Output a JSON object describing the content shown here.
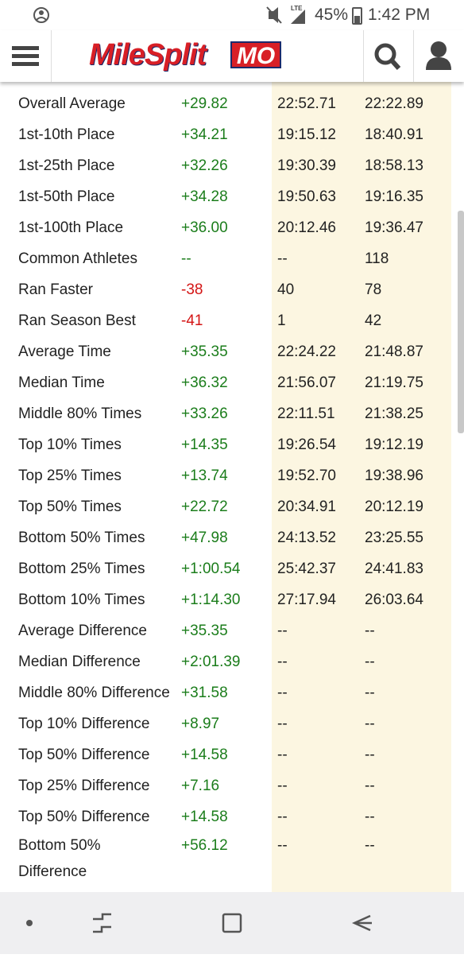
{
  "status_bar": {
    "network": "LTE",
    "battery": "45%",
    "time": "1:42 PM"
  },
  "header": {
    "logo": "MileSplit",
    "region": "MO"
  },
  "table": {
    "rows": [
      [
        "Overall Average",
        "+29.82",
        "22:52.71",
        "22:22.89"
      ],
      [
        "1st-10th Place",
        "+34.21",
        "19:15.12",
        "18:40.91"
      ],
      [
        "1st-25th Place",
        "+32.26",
        "19:30.39",
        "18:58.13"
      ],
      [
        "1st-50th Place",
        "+34.28",
        "19:50.63",
        "19:16.35"
      ],
      [
        "1st-100th Place",
        "+36.00",
        "20:12.46",
        "19:36.47"
      ],
      [
        "Common Athletes",
        "--",
        "--",
        "118"
      ],
      [
        "Ran Faster",
        "-38",
        "40",
        "78"
      ],
      [
        "Ran Season Best",
        "-41",
        "1",
        "42"
      ],
      [
        "Average Time",
        "+35.35",
        "22:24.22",
        "21:48.87"
      ],
      [
        "Median Time",
        "+36.32",
        "21:56.07",
        "21:19.75"
      ],
      [
        "Middle 80% Times",
        "+33.26",
        "22:11.51",
        "21:38.25"
      ],
      [
        "Top 10% Times",
        "+14.35",
        "19:26.54",
        "19:12.19"
      ],
      [
        "Top 25% Times",
        "+13.74",
        "19:52.70",
        "19:38.96"
      ],
      [
        "Top 50% Times",
        "+22.72",
        "20:34.91",
        "20:12.19"
      ],
      [
        "Bottom 50% Times",
        "+47.98",
        "24:13.52",
        "23:25.55"
      ],
      [
        "Bottom 25% Times",
        "+1:00.54",
        "25:42.37",
        "24:41.83"
      ],
      [
        "Bottom 10% Times",
        "+1:14.30",
        "27:17.94",
        "26:03.64"
      ],
      [
        "Average Difference",
        "+35.35",
        "--",
        "--"
      ],
      [
        "Median Difference",
        "+2:01.39",
        "--",
        "--"
      ],
      [
        "Middle 80% Difference",
        "+31.58",
        "--",
        "--"
      ],
      [
        "Top 10% Difference",
        "+8.97",
        "--",
        "--"
      ],
      [
        "Top 50% Difference",
        "+14.58",
        "--",
        "--"
      ],
      [
        "Top 25% Difference",
        "+7.16",
        "--",
        "--"
      ],
      [
        "Top 50% Difference",
        "+14.58",
        "--",
        "--"
      ],
      [
        "Bottom 50% Difference",
        "+56.12",
        "--",
        "--"
      ]
    ]
  }
}
